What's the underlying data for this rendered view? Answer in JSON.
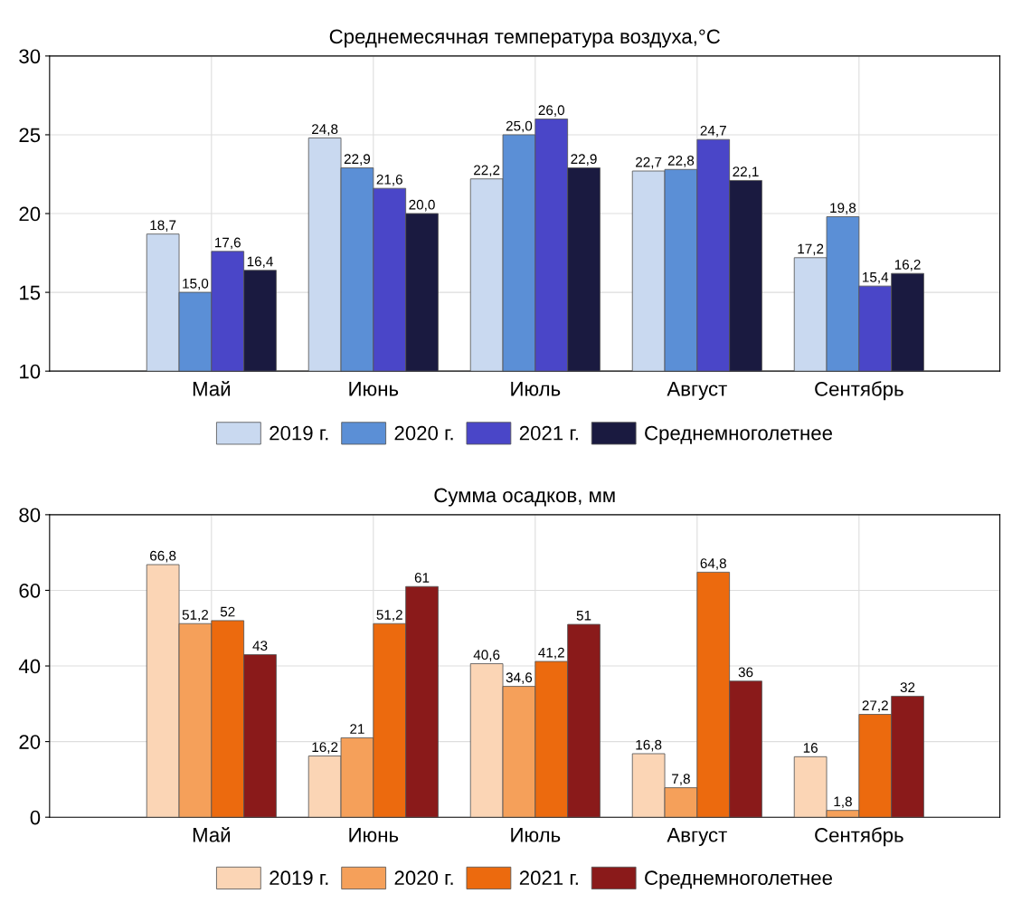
{
  "chart_data": [
    {
      "type": "bar",
      "title": "Среднемесячная температура воздуха,°C",
      "categories": [
        "Май",
        "Июнь",
        "Июль",
        "Август",
        "Сентябрь"
      ],
      "ylim": [
        10,
        30
      ],
      "yticks": [
        10,
        15,
        20,
        25,
        30
      ],
      "grid": true,
      "legend": "bottom",
      "series": [
        {
          "name": "2019 г.",
          "color": "#c9d9f0",
          "values": [
            18.7,
            24.8,
            22.2,
            22.7,
            17.2
          ],
          "value_labels": [
            "18,7",
            "24,8",
            "22,2",
            "22,7",
            "17,2"
          ]
        },
        {
          "name": "2020 г.",
          "color": "#5b8fd6",
          "values": [
            15.0,
            22.9,
            25.0,
            22.8,
            19.8
          ],
          "value_labels": [
            "15,0",
            "22,9",
            "25,0",
            "22,8",
            "19,8"
          ]
        },
        {
          "name": "2021 г.",
          "color": "#4a46c8",
          "values": [
            17.6,
            21.6,
            26.0,
            24.7,
            15.4
          ],
          "value_labels": [
            "17,6",
            "21,6",
            "26,0",
            "24,7",
            "15,4"
          ]
        },
        {
          "name": "Среднемноголетнее",
          "color": "#1a1a40",
          "values": [
            16.4,
            20.0,
            22.9,
            22.1,
            16.2
          ],
          "value_labels": [
            "16,4",
            "20,0",
            "22,9",
            "22,1",
            "16,2"
          ]
        }
      ]
    },
    {
      "type": "bar",
      "title": "Сумма осадков, мм",
      "categories": [
        "Май",
        "Июнь",
        "Июль",
        "Август",
        "Сентябрь"
      ],
      "ylim": [
        0,
        80
      ],
      "yticks": [
        0,
        20,
        40,
        60,
        80
      ],
      "grid": true,
      "legend": "bottom",
      "series": [
        {
          "name": "2019 г.",
          "color": "#fbd5b5",
          "values": [
            66.8,
            16.2,
            40.6,
            16.8,
            16
          ],
          "value_labels": [
            "66,8",
            "16,2",
            "40,6",
            "16,8",
            "16"
          ]
        },
        {
          "name": "2020 г.",
          "color": "#f5a05a",
          "values": [
            51.2,
            21,
            34.6,
            7.8,
            1.8
          ],
          "value_labels": [
            "51,2",
            "21",
            "34,6",
            "7,8",
            "1,8"
          ]
        },
        {
          "name": "2021 г.",
          "color": "#ec6a0e",
          "values": [
            52,
            51.2,
            41.2,
            64.8,
            27.2
          ],
          "value_labels": [
            "52",
            "51,2",
            "41,2",
            "64,8",
            "27,2"
          ]
        },
        {
          "name": "Среднемноголетнее",
          "color": "#8a1a1a",
          "values": [
            43,
            61,
            51,
            36,
            32
          ],
          "value_labels": [
            "43",
            "61",
            "51",
            "36",
            "32"
          ]
        }
      ]
    }
  ]
}
